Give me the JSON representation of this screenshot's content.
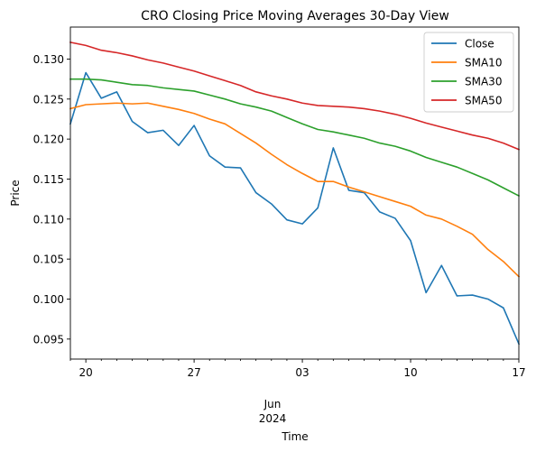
{
  "chart_data": {
    "type": "line",
    "title": "CRO Closing Price Moving Averages 30-Day View",
    "xlabel": "Time",
    "ylabel": "Price",
    "x": [
      "2024-05-19",
      "2024-05-20",
      "2024-05-21",
      "2024-05-22",
      "2024-05-23",
      "2024-05-24",
      "2024-05-25",
      "2024-05-26",
      "2024-05-27",
      "2024-05-28",
      "2024-05-29",
      "2024-05-30",
      "2024-05-31",
      "2024-06-01",
      "2024-06-02",
      "2024-06-03",
      "2024-06-04",
      "2024-06-05",
      "2024-06-06",
      "2024-06-07",
      "2024-06-08",
      "2024-06-09",
      "2024-06-10",
      "2024-06-11",
      "2024-06-12",
      "2024-06-13",
      "2024-06-14",
      "2024-06-15",
      "2024-06-16",
      "2024-06-17"
    ],
    "xlim": [
      "2024-05-19",
      "2024-06-17"
    ],
    "ylim": [
      0.0925,
      0.134
    ],
    "major_ticks": [
      {
        "date": "2024-05-20",
        "label": "20"
      },
      {
        "date": "2024-05-27",
        "label": "27"
      },
      {
        "date": "2024-06-03",
        "label": "03"
      },
      {
        "date": "2024-06-10",
        "label": "10"
      },
      {
        "date": "2024-06-17",
        "label": "17"
      }
    ],
    "month_label": {
      "month": "Jun",
      "year": "2024"
    },
    "yticks": [
      "0.095",
      "0.100",
      "0.105",
      "0.110",
      "0.115",
      "0.120",
      "0.125",
      "0.130"
    ],
    "grid": false,
    "legend_position": "top-right",
    "series": [
      {
        "name": "Close",
        "color": "#1f77b4",
        "values": [
          0.1219,
          0.1283,
          0.1251,
          0.1259,
          0.1222,
          0.1208,
          0.1211,
          0.1192,
          0.1217,
          0.1179,
          0.1165,
          0.1164,
          0.1133,
          0.1119,
          0.1099,
          0.1094,
          0.1114,
          0.1189,
          0.1136,
          0.1133,
          0.1109,
          0.1101,
          0.1073,
          0.1008,
          0.1042,
          0.1004,
          0.1005,
          0.1,
          0.0989,
          0.0944
        ]
      },
      {
        "name": "SMA10",
        "color": "#ff7f0e",
        "values": [
          0.1238,
          0.1243,
          0.1244,
          0.1245,
          0.1244,
          0.1245,
          0.1241,
          0.1237,
          0.1232,
          0.1225,
          0.1219,
          0.1207,
          0.1195,
          0.1181,
          0.1168,
          0.1157,
          0.1147,
          0.1147,
          0.114,
          0.1134,
          0.1128,
          0.1122,
          0.1116,
          0.1105,
          0.11,
          0.1091,
          0.1081,
          0.1062,
          0.1047,
          0.1028
        ]
      },
      {
        "name": "SMA30",
        "color": "#2ca02c",
        "values": [
          0.1275,
          0.1275,
          0.1274,
          0.1271,
          0.1268,
          0.1267,
          0.1264,
          0.1262,
          0.126,
          0.1255,
          0.125,
          0.1244,
          0.124,
          0.1235,
          0.1227,
          0.1219,
          0.1212,
          0.1209,
          0.1205,
          0.1201,
          0.1195,
          0.1191,
          0.1185,
          0.1177,
          0.1171,
          0.1165,
          0.1157,
          0.1149,
          0.1139,
          0.1129
        ]
      },
      {
        "name": "SMA50",
        "color": "#d62728",
        "values": [
          0.1321,
          0.1317,
          0.1311,
          0.1308,
          0.1304,
          0.1299,
          0.1295,
          0.129,
          0.1285,
          0.1279,
          0.1273,
          0.1267,
          0.1259,
          0.1254,
          0.125,
          0.1245,
          0.1242,
          0.1241,
          0.124,
          0.1238,
          0.1235,
          0.1231,
          0.1226,
          0.122,
          0.1215,
          0.121,
          0.1205,
          0.1201,
          0.1195,
          0.1187
        ]
      }
    ]
  }
}
